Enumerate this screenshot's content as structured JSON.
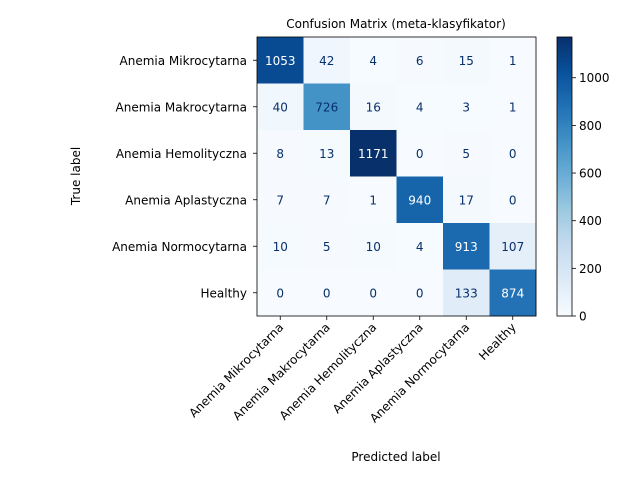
{
  "chart_data": {
    "type": "heatmap",
    "title": "Confusion Matrix (meta-klasyfikator)",
    "xlabel": "Predicted label",
    "ylabel": "True label",
    "row_labels": [
      "Anemia Mikrocytarna",
      "Anemia Makrocytarna",
      "Anemia Hemolityczna",
      "Anemia Aplastyczna",
      "Anemia Normocytarna",
      "Healthy"
    ],
    "col_labels": [
      "Anemia Mikrocytarna",
      "Anemia Makrocytarna",
      "Anemia Hemolityczna",
      "Anemia Aplastyczna",
      "Anemia Normocytarna",
      "Healthy"
    ],
    "matrix": [
      [
        1053,
        42,
        4,
        6,
        15,
        1
      ],
      [
        40,
        726,
        16,
        4,
        3,
        1
      ],
      [
        8,
        13,
        1171,
        0,
        5,
        0
      ],
      [
        7,
        7,
        1,
        940,
        17,
        0
      ],
      [
        10,
        5,
        10,
        4,
        913,
        107
      ],
      [
        0,
        0,
        0,
        0,
        133,
        874
      ]
    ],
    "colormap": "Blues",
    "colorbar": {
      "min": 0,
      "max": 1171,
      "ticks": [
        0,
        200,
        400,
        600,
        800,
        1000
      ]
    },
    "grid": false,
    "legend": "right"
  }
}
